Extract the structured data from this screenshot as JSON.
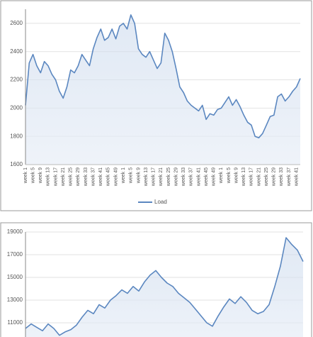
{
  "chart_data": [
    {
      "type": "line",
      "categories": [
        "week 1",
        null,
        "week 5",
        null,
        "week 9",
        null,
        "week 13",
        null,
        "week 17",
        null,
        "week 21",
        null,
        "week 25",
        null,
        "week 29",
        null,
        "week 33",
        null,
        "week 37",
        null,
        "week 41",
        null,
        "week 45",
        null,
        "week 49",
        null,
        "week 1",
        null,
        "week 5",
        null,
        "week 9",
        null,
        "week 13",
        null,
        "week 17",
        null,
        "week 21",
        null,
        "week 25",
        null,
        "week 29",
        null,
        "week 33",
        null,
        "week 37",
        null,
        "week 41",
        null,
        "week 45",
        null,
        "week 49",
        null,
        "week 1",
        null,
        "week 5",
        null,
        "week 9",
        null,
        "week 13",
        null,
        "week 17",
        null,
        "week 21",
        null,
        "week 25",
        null,
        "week 29",
        null,
        "week 33",
        null,
        "week 37",
        null,
        "week 41",
        null
      ],
      "series": [
        {
          "name": "Load",
          "color": "#5b87c0",
          "values": [
            2020,
            2320,
            2380,
            2300,
            2250,
            2330,
            2300,
            2240,
            2200,
            2120,
            2070,
            2150,
            2270,
            2250,
            2300,
            2380,
            2340,
            2300,
            2420,
            2500,
            2560,
            2480,
            2500,
            2560,
            2490,
            2580,
            2600,
            2560,
            2660,
            2600,
            2420,
            2380,
            2360,
            2400,
            2340,
            2280,
            2320,
            2530,
            2480,
            2400,
            2280,
            2150,
            2110,
            2050,
            2020,
            2000,
            1980,
            2020,
            1920,
            1960,
            1950,
            1990,
            2000,
            2040,
            2080,
            2020,
            2060,
            2010,
            1950,
            1900,
            1880,
            1800,
            1790,
            1820,
            1880,
            1940,
            1950,
            2080,
            2100,
            2050,
            2080,
            2120,
            2150,
            2210
          ]
        }
      ],
      "ylim": [
        1600,
        2700
      ],
      "yticks": [
        1600,
        1800,
        2000,
        2200,
        2400,
        2600
      ],
      "grid": true,
      "legend": "bottom"
    },
    {
      "type": "line",
      "color": "#5b87c0",
      "values": [
        10500,
        10900,
        10600,
        10300,
        10900,
        10500,
        9900,
        10200,
        10400,
        10800,
        11500,
        12100,
        11800,
        12600,
        12300,
        13000,
        13400,
        13900,
        13600,
        14200,
        13800,
        14600,
        15200,
        15600,
        15000,
        14500,
        14200,
        13600,
        13200,
        12800,
        12200,
        11600,
        11000,
        10700,
        11600,
        12400,
        13100,
        12700,
        13300,
        12800,
        12100,
        11800,
        12000,
        12600,
        14200,
        16000,
        18500,
        17900,
        17400,
        16400
      ],
      "ylim": [
        9000,
        19000
      ],
      "yticks": [
        11000,
        13000,
        15000,
        17000,
        19000
      ],
      "grid": true
    }
  ]
}
